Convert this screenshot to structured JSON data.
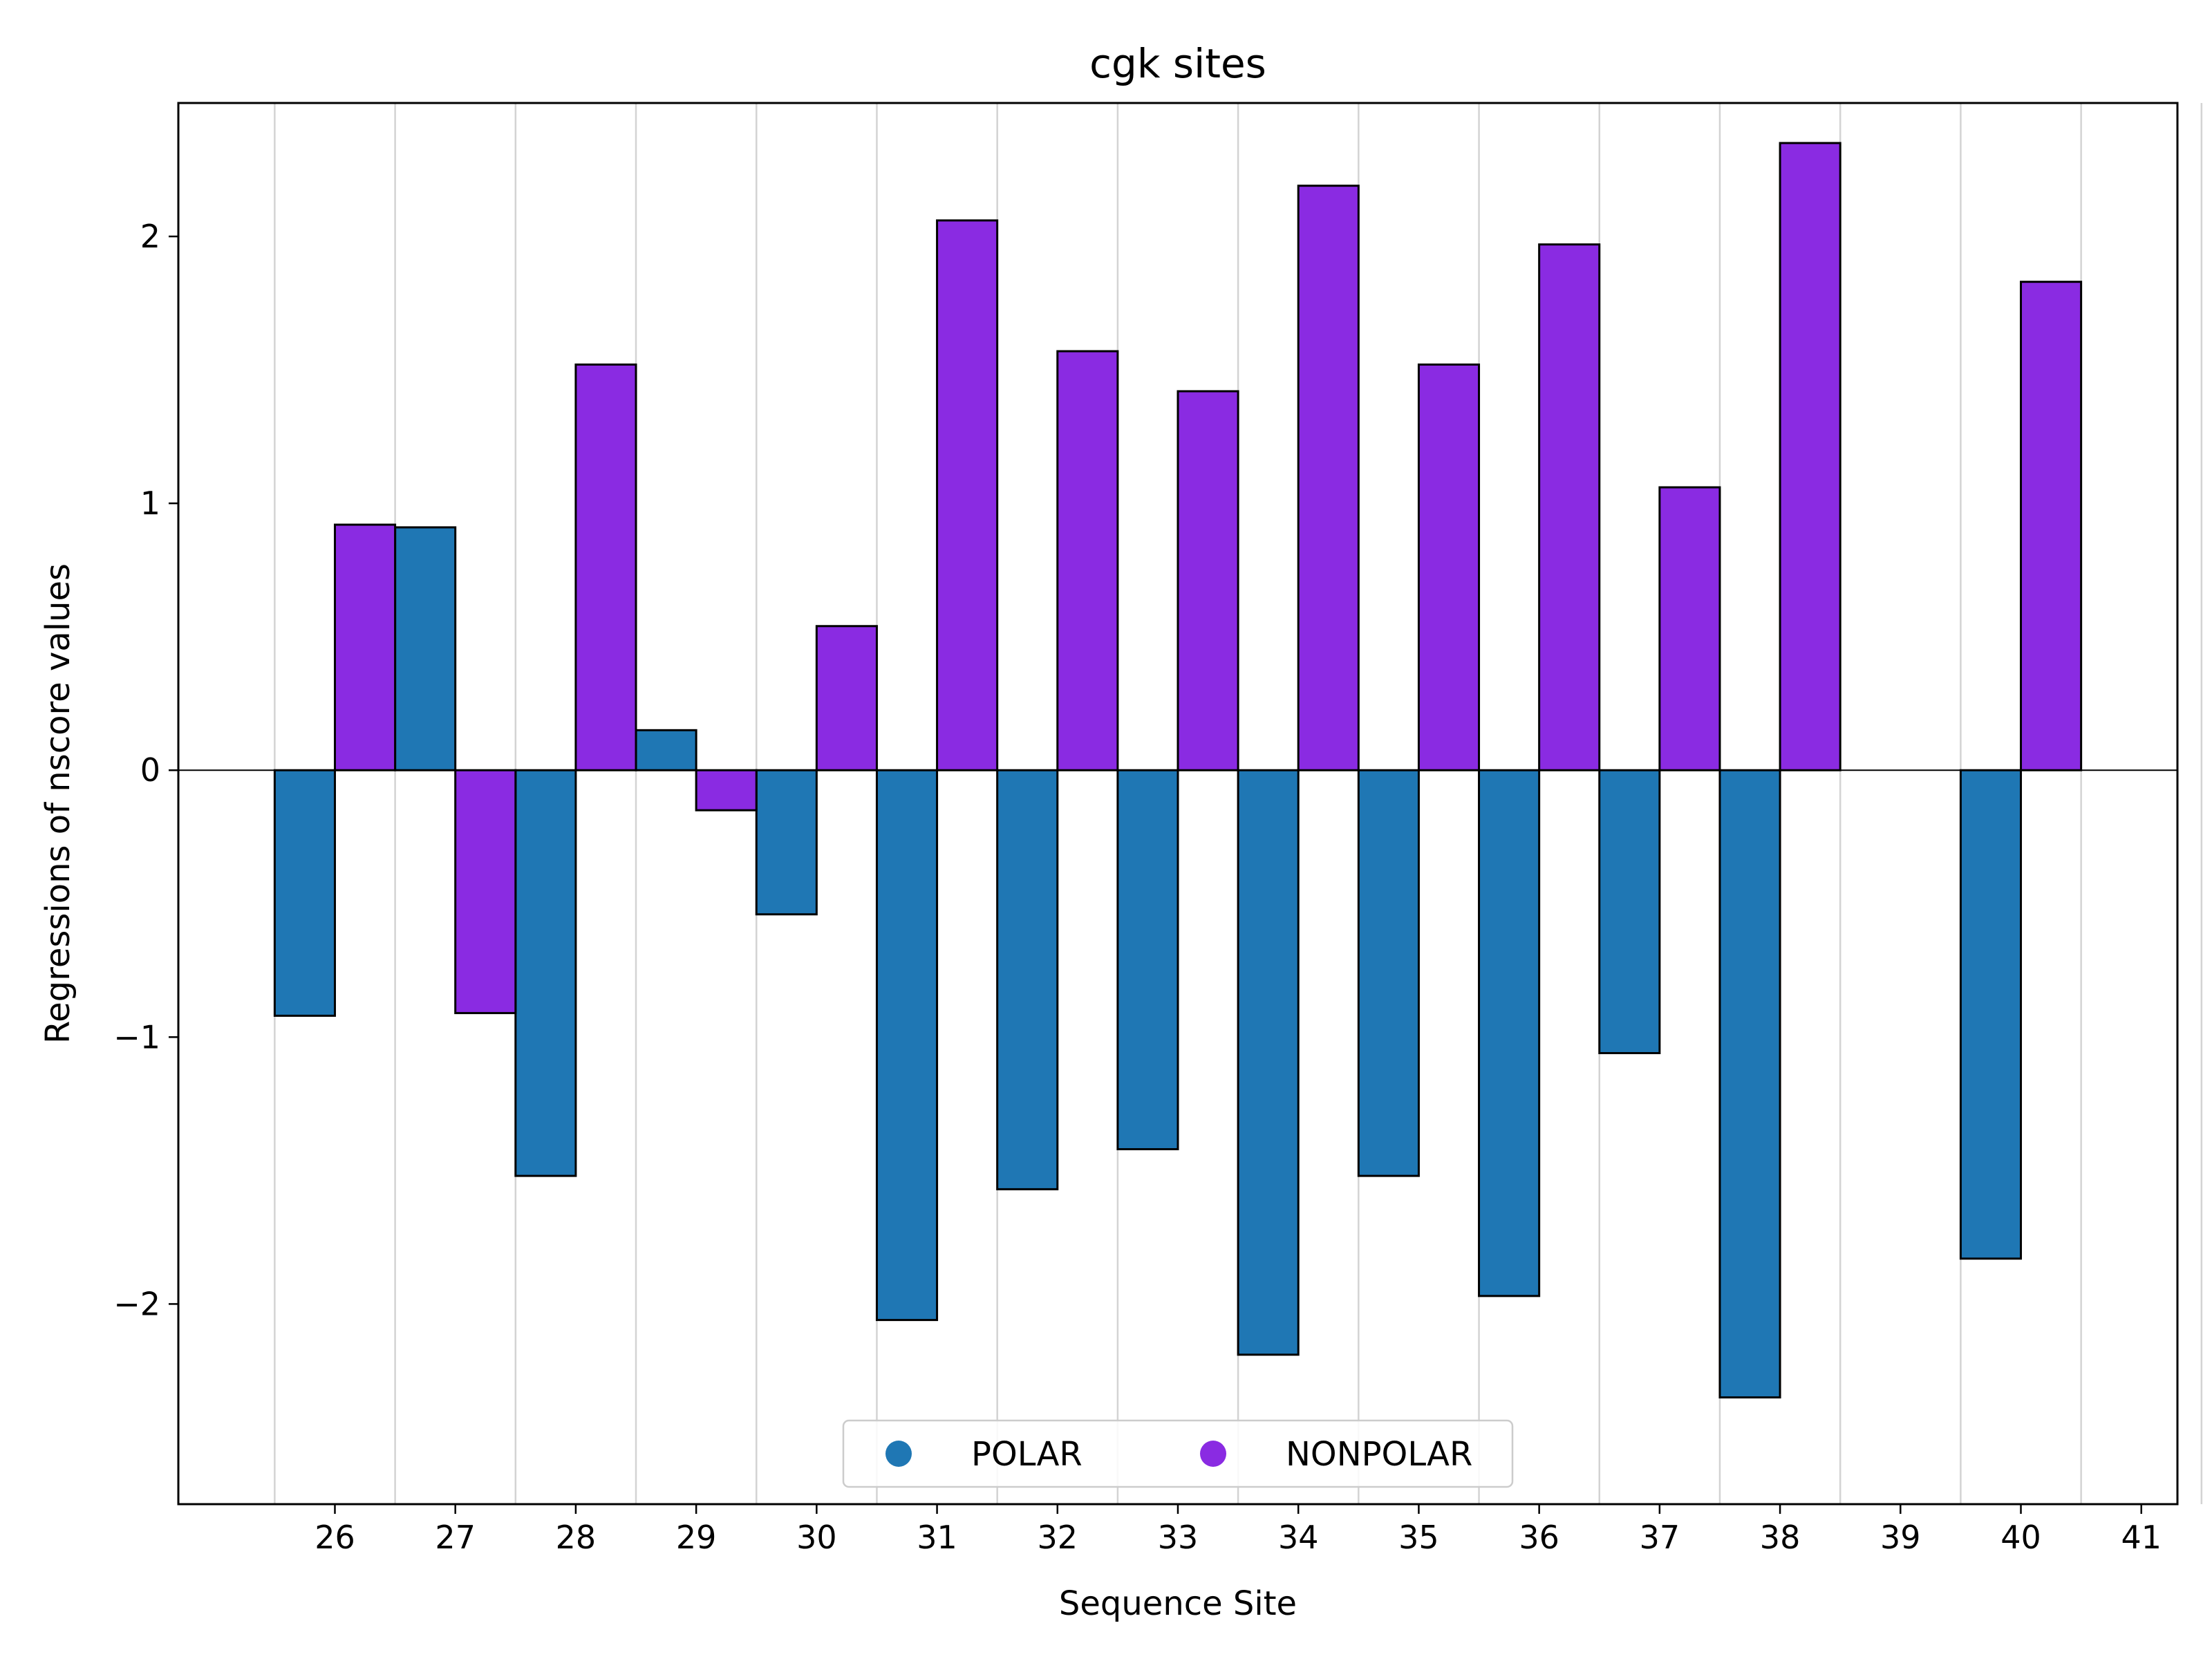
{
  "chart_data": {
    "type": "bar",
    "title": "cgk sites",
    "xlabel": "Sequence Site",
    "ylabel": "Regressions of nscore values",
    "categories": [
      "26",
      "27",
      "28",
      "29",
      "30",
      "31",
      "32",
      "33",
      "34",
      "35",
      "36",
      "37",
      "38",
      "39",
      "40",
      "41"
    ],
    "series": [
      {
        "name": "POLAR",
        "color": "#1f77b4",
        "values": [
          -0.92,
          0.91,
          -1.52,
          0.15,
          -0.54,
          -2.06,
          -1.57,
          -1.42,
          -2.19,
          -1.52,
          -1.97,
          -1.06,
          -2.35,
          null,
          -1.83,
          null
        ]
      },
      {
        "name": "NONPOLAR",
        "color": "#8a2be2",
        "values": [
          0.92,
          -0.91,
          1.52,
          -0.15,
          0.54,
          2.06,
          1.57,
          1.42,
          2.19,
          1.52,
          1.97,
          1.06,
          2.35,
          null,
          1.83,
          null
        ]
      }
    ],
    "ylim": [
      -2.75,
      2.5
    ],
    "yticks": [
      -2,
      -1,
      0,
      1,
      2
    ],
    "ytick_labels": [
      "−2",
      "−1",
      "0",
      "1",
      "2"
    ],
    "grid": "vertical",
    "legend_position": "lower center"
  }
}
